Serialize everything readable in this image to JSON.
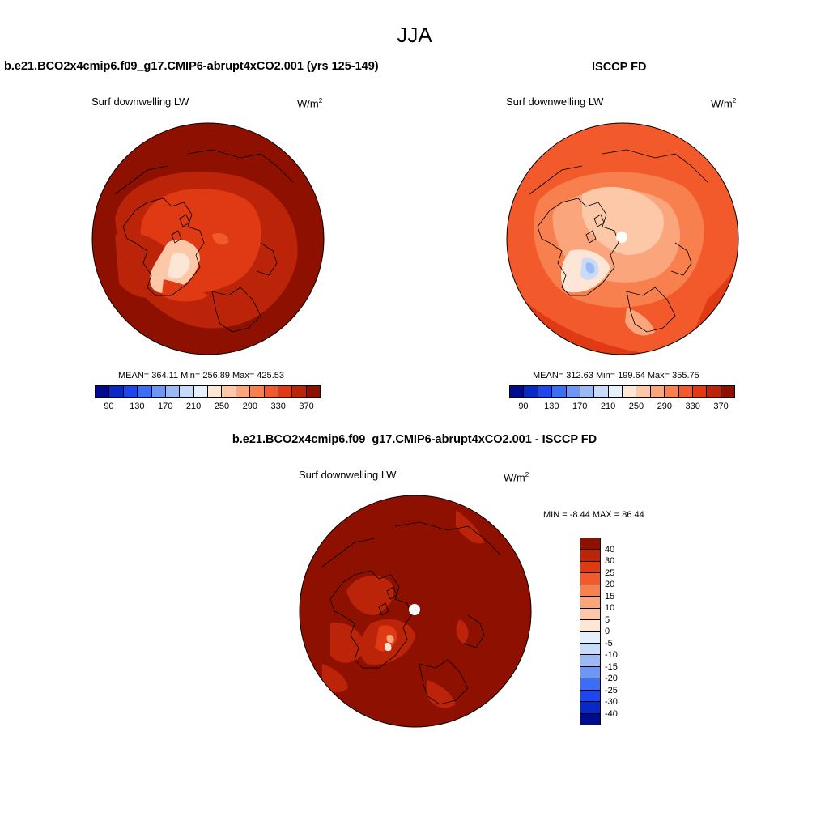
{
  "figure": {
    "season": "JJA",
    "left_title": "b.e21.BCO2x4cmip6.f09_g17.CMIP6-abrupt4xCO2.001 (yrs 125-149)",
    "right_title": "ISCCP FD",
    "diff_title": "b.e21.BCO2x4cmip6.f09_g17.CMIP6-abrupt4xCO2.001 - ISCCP FD"
  },
  "panels": {
    "model": {
      "variable": "Surf downwelling LW",
      "units_base": "W/m",
      "units_exp": "2",
      "stats": "MEAN= 364.11  Min= 256.89  Max= 425.53"
    },
    "obs": {
      "variable": "Surf downwelling LW",
      "units_base": "W/m",
      "units_exp": "2",
      "stats": "MEAN= 312.63  Min= 199.64  Max= 355.75"
    },
    "diff": {
      "variable": "Surf downwelling LW",
      "units_base": "W/m",
      "units_exp": "2",
      "stats": "MIN =  -8.44 MAX =  86.44"
    }
  },
  "abs_colorbar": {
    "colors": [
      "#000a8c",
      "#0a28c8",
      "#1e46f0",
      "#3c6ef5",
      "#6e96f5",
      "#9bb9f5",
      "#c8dcfa",
      "#e6f0fc",
      "#fde6d6",
      "#fcc8a8",
      "#fba57c",
      "#f8804f",
      "#f25a2c",
      "#df3a14",
      "#bb2408",
      "#8e1000"
    ],
    "ticks": [
      "90",
      "130",
      "170",
      "210",
      "250",
      "290",
      "330",
      "370"
    ]
  },
  "diff_colorbar": {
    "colors": [
      "#8e1000",
      "#bb2408",
      "#df3a14",
      "#f25a2c",
      "#f8804f",
      "#fba57c",
      "#fcc8a8",
      "#fde6d6",
      "#e6f0fc",
      "#c8dcfa",
      "#9bb9f5",
      "#6e96f5",
      "#3c6ef5",
      "#1e46f0",
      "#0a28c8",
      "#000a8c"
    ],
    "ticks": [
      "40",
      "30",
      "25",
      "20",
      "15",
      "10",
      "5",
      "0",
      "-5",
      "-10",
      "-15",
      "-20",
      "-25",
      "-30",
      "-40"
    ]
  }
}
